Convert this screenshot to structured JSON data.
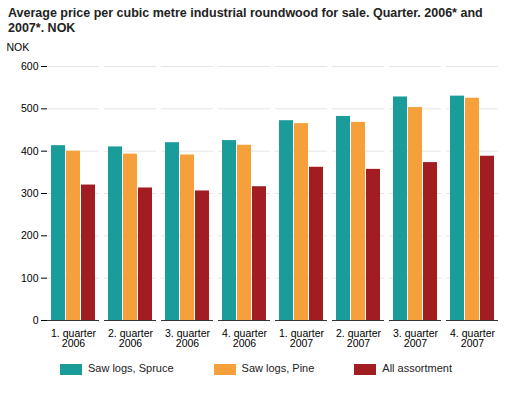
{
  "chart_data": {
    "type": "bar",
    "title": "Average price per cubic metre industrial roundwood for sale. Quarter. 2006* and 2007*. NOK",
    "y_label": "NOK",
    "categories": [
      "1. quarter\n2006",
      "2. quarter\n2006",
      "3. quarter\n2006",
      "4. quarter\n2006",
      "1. quarter\n2007",
      "2. quarter\n2007",
      "3. quarter\n2007",
      "4. quarter\n2007"
    ],
    "series": [
      {
        "name": "Saw logs, Spruce",
        "color": "#1a9c9a",
        "values": [
          413,
          410,
          420,
          425,
          472,
          482,
          528,
          530
        ]
      },
      {
        "name": "Saw logs, Pine",
        "color": "#f5a03a",
        "values": [
          400,
          393,
          391,
          414,
          465,
          468,
          503,
          525
        ]
      },
      {
        "name": "All assortment",
        "color": "#a11d22",
        "values": [
          320,
          313,
          306,
          316,
          362,
          357,
          373,
          388
        ]
      }
    ],
    "ylim": [
      0,
      600
    ],
    "yticks": [
      0,
      100,
      200,
      300,
      400,
      500,
      600
    ],
    "grid": true,
    "legend": "bottom"
  }
}
